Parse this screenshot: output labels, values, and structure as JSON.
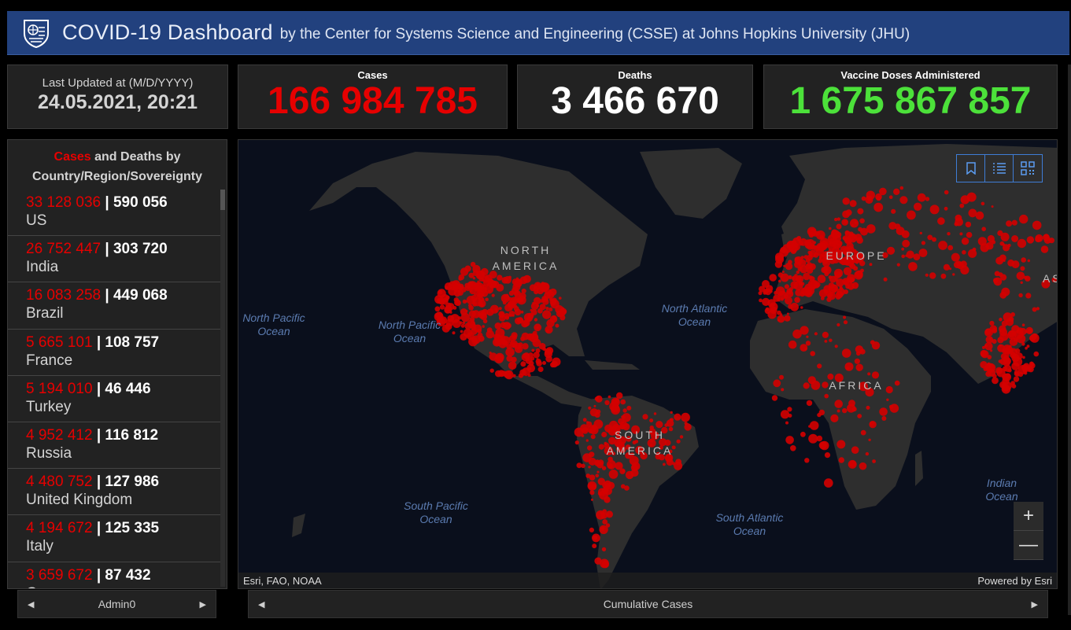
{
  "header": {
    "title": "COVID-19 Dashboard",
    "subtitle": "by the Center for Systems Science and Engineering (CSSE) at Johns Hopkins University (JHU)"
  },
  "last_updated": {
    "label": "Last Updated at (M/D/YYYY)",
    "value": "24.05.2021, 20:21"
  },
  "stats": {
    "cases": {
      "label": "Cases",
      "value": "166 984 785",
      "color": "#e60000"
    },
    "deaths": {
      "label": "Deaths",
      "value": "3 466 670",
      "color": "#ffffff"
    },
    "vaccine": {
      "label": "Vaccine Doses Administered",
      "value": "1 675 867 857",
      "color": "#4ce13a"
    }
  },
  "list": {
    "title_cases": "Cases",
    "title_rest": "and Deaths by",
    "title_line2": "Country/Region/Sovereignty",
    "separator": "|",
    "items": [
      {
        "cases": "33 128 036",
        "deaths": "590 056",
        "name": "US"
      },
      {
        "cases": "26 752 447",
        "deaths": "303 720",
        "name": "India"
      },
      {
        "cases": "16 083 258",
        "deaths": "449 068",
        "name": "Brazil"
      },
      {
        "cases": "5 665 101",
        "deaths": "108 757",
        "name": "France"
      },
      {
        "cases": "5 194 010",
        "deaths": "46 446",
        "name": "Turkey"
      },
      {
        "cases": "4 952 412",
        "deaths": "116 812",
        "name": "Russia"
      },
      {
        "cases": "4 480 752",
        "deaths": "127 986",
        "name": "United Kingdom"
      },
      {
        "cases": "4 194 672",
        "deaths": "125 335",
        "name": "Italy"
      },
      {
        "cases": "3 659 672",
        "deaths": "87 432",
        "name": "Germany"
      }
    ],
    "footer_label": "Admin0"
  },
  "map": {
    "oceans": {
      "north_pacific_left": "North Pacific\nOcean",
      "north_pacific": "North Pacific\nOcean",
      "north_atlantic": "North Atlantic\nOcean",
      "south_pacific": "South Pacific\nOcean",
      "south_atlantic": "South Atlantic\nOcean",
      "indian": "Indian\nOcean"
    },
    "continents": {
      "north_america": "NORTH\nAMERICA",
      "south_america": "SOUTH\nAMERICA",
      "europe": "EUROPE",
      "africa": "AFRICA",
      "asia": "AS"
    },
    "attribution_left": "Esri, FAO, NOAA",
    "attribution_right": "Powered by Esri",
    "footer_label": "Cumulative Cases",
    "tools": [
      "bookmark-icon",
      "list-icon",
      "qr-icon"
    ],
    "dot_color": "#d40000",
    "land_color": "#2e2e2e",
    "water_color": "#0a0f1c"
  }
}
